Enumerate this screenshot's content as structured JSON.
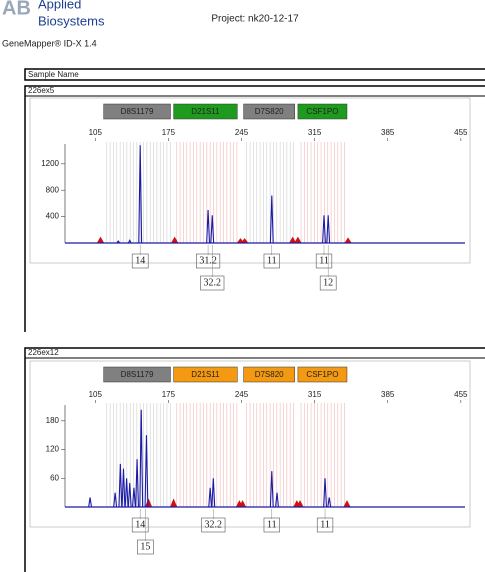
{
  "header": {
    "logo": "AB",
    "brand_line1": "Applied",
    "brand_line2": "Biosystems",
    "software": "GeneMapper® ID-X 1.4",
    "project": "Project: nk20-12-17"
  },
  "sample_name_label": "Sample Name",
  "chart_data": [
    {
      "type": "electropherogram",
      "title": "226ex5",
      "xlim": [
        76,
        459
      ],
      "xticks": [
        105,
        175,
        245,
        315,
        385,
        455
      ],
      "ylim": [
        0,
        1500
      ],
      "yticks": [
        400,
        800,
        1200
      ],
      "markers": [
        {
          "name": "D8S1179",
          "start": 113,
          "end": 177,
          "color": "#808080"
        },
        {
          "name": "D21S11",
          "start": 180,
          "end": 241,
          "color": "#1e9b1e"
        },
        {
          "name": "D7S820",
          "start": 247,
          "end": 296,
          "color": "#808080"
        },
        {
          "name": "CSF1PO",
          "start": 299,
          "end": 346,
          "color": "#1e9b1e"
        }
      ],
      "peaks": {
        "color": "#1a1aa8",
        "x": [
          127,
          138,
          148,
          213,
          217,
          274,
          324,
          328
        ],
        "values": [
          30,
          40,
          1480,
          500,
          420,
          720,
          420,
          420
        ]
      },
      "pullups": {
        "color": "#d01010",
        "x": [
          110,
          181,
          244,
          248,
          294,
          299,
          347
        ],
        "values": [
          80,
          80,
          60,
          60,
          80,
          80,
          70
        ]
      },
      "alleles": [
        {
          "label": "14",
          "x": 148
        },
        {
          "label": "31.2",
          "x": 213
        },
        {
          "label": "32.2",
          "x": 217
        },
        {
          "label": "11",
          "x": 274
        },
        {
          "label": "11",
          "x": 324
        },
        {
          "label": "12",
          "x": 328
        }
      ]
    },
    {
      "type": "electropherogram",
      "title": "226ex12",
      "xlim": [
        76,
        459
      ],
      "xticks": [
        105,
        175,
        245,
        315,
        385,
        455
      ],
      "ylim": [
        0,
        213
      ],
      "yticks": [
        60,
        120,
        180
      ],
      "markers": [
        {
          "name": "D8S1179",
          "start": 113,
          "end": 177,
          "color": "#808080"
        },
        {
          "name": "D21S11",
          "start": 180,
          "end": 241,
          "color": "#f39a12"
        },
        {
          "name": "D7S820",
          "start": 247,
          "end": 296,
          "color": "#f39a12"
        },
        {
          "name": "CSF1PO",
          "start": 299,
          "end": 346,
          "color": "#f39a12"
        }
      ],
      "peaks": {
        "color": "#1a1aa8",
        "x": [
          100,
          124,
          129,
          132,
          135,
          138,
          142,
          145,
          149,
          154,
          215,
          218,
          274,
          279,
          325,
          329
        ],
        "values": [
          20,
          30,
          90,
          80,
          60,
          50,
          40,
          100,
          203,
          150,
          40,
          60,
          75,
          30,
          60,
          20
        ]
      },
      "pullups": {
        "color": "#d01010",
        "x": [
          156,
          180,
          243,
          246,
          298,
          301,
          346
        ],
        "values": [
          15,
          15,
          12,
          12,
          12,
          12,
          12
        ]
      },
      "alleles": [
        {
          "label": "14",
          "x": 148
        },
        {
          "label": "15",
          "x": 153
        },
        {
          "label": "32.2",
          "x": 218
        },
        {
          "label": "11",
          "x": 274
        },
        {
          "label": "11",
          "x": 325
        }
      ]
    }
  ]
}
